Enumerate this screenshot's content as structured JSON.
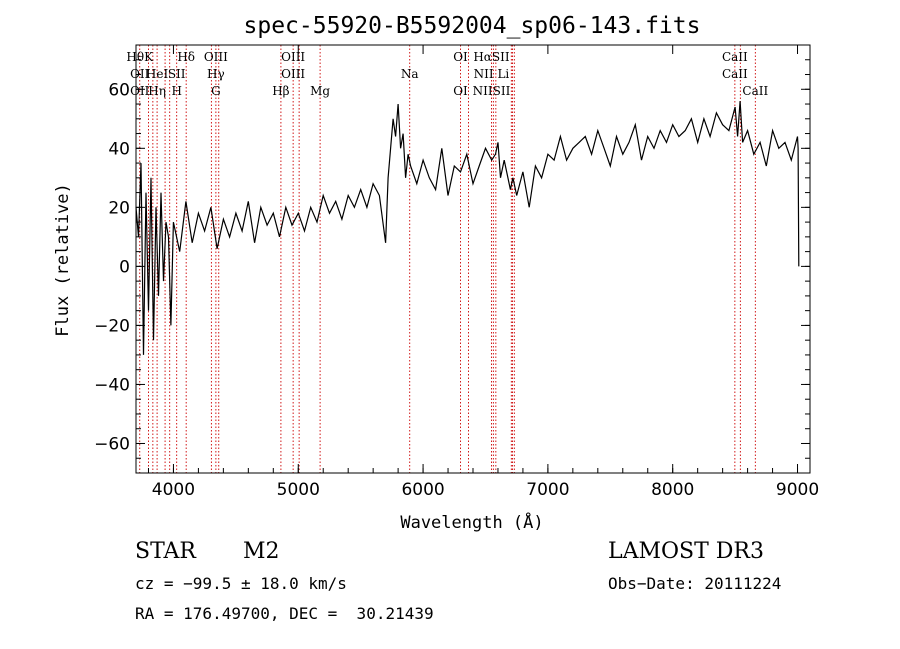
{
  "chart_data": {
    "type": "line",
    "title": "spec-55920-B5592004_sp06-143.fits",
    "xlabel": "Wavelength (Å)",
    "ylabel": "Flux (relative)",
    "xlim": [
      3700,
      9100
    ],
    "ylim": [
      -70,
      75
    ],
    "xticks": [
      {
        "value": 4000,
        "label": "4000"
      },
      {
        "value": 5000,
        "label": "5000"
      },
      {
        "value": 6000,
        "label": "6000"
      },
      {
        "value": 7000,
        "label": "7000"
      },
      {
        "value": 8000,
        "label": "8000"
      },
      {
        "value": 9000,
        "label": "9000"
      }
    ],
    "yticks": [
      {
        "value": 60,
        "label": "60"
      },
      {
        "value": 40,
        "label": "40"
      },
      {
        "value": 20,
        "label": "20"
      },
      {
        "value": 0,
        "label": "0"
      },
      {
        "value": -20,
        "label": "−20"
      },
      {
        "value": -40,
        "label": "−40"
      },
      {
        "value": -60,
        "label": "−60"
      }
    ],
    "series": [
      {
        "name": "flux",
        "x": [
          3700,
          3720,
          3740,
          3760,
          3780,
          3800,
          3820,
          3840,
          3860,
          3880,
          3900,
          3920,
          3940,
          3960,
          3980,
          4000,
          4050,
          4100,
          4150,
          4200,
          4250,
          4300,
          4350,
          4400,
          4450,
          4500,
          4550,
          4600,
          4650,
          4700,
          4750,
          4800,
          4850,
          4900,
          4950,
          5000,
          5050,
          5100,
          5150,
          5200,
          5250,
          5300,
          5350,
          5400,
          5450,
          5500,
          5550,
          5600,
          5650,
          5700,
          5720,
          5740,
          5760,
          5780,
          5800,
          5820,
          5840,
          5860,
          5880,
          5900,
          5950,
          6000,
          6050,
          6100,
          6150,
          6200,
          6250,
          6300,
          6350,
          6400,
          6450,
          6500,
          6550,
          6580,
          6600,
          6620,
          6650,
          6700,
          6720,
          6750,
          6800,
          6850,
          6900,
          6950,
          7000,
          7050,
          7100,
          7150,
          7200,
          7250,
          7300,
          7350,
          7400,
          7450,
          7500,
          7550,
          7600,
          7650,
          7700,
          7750,
          7800,
          7850,
          7900,
          7950,
          8000,
          8050,
          8100,
          8150,
          8200,
          8250,
          8300,
          8350,
          8400,
          8450,
          8500,
          8520,
          8540,
          8560,
          8600,
          8650,
          8700,
          8750,
          8800,
          8850,
          8900,
          8950,
          9000,
          9005,
          9010
        ],
        "values": [
          20,
          10,
          35,
          -30,
          25,
          -15,
          30,
          -25,
          20,
          -10,
          25,
          -5,
          15,
          10,
          -20,
          15,
          5,
          22,
          8,
          18,
          12,
          20,
          6,
          16,
          10,
          18,
          12,
          22,
          8,
          20,
          14,
          18,
          10,
          20,
          14,
          18,
          12,
          20,
          15,
          24,
          18,
          22,
          16,
          24,
          20,
          26,
          20,
          28,
          24,
          8,
          30,
          40,
          50,
          44,
          55,
          40,
          45,
          30,
          38,
          34,
          28,
          36,
          30,
          26,
          40,
          24,
          34,
          32,
          38,
          28,
          34,
          40,
          36,
          38,
          42,
          30,
          36,
          26,
          30,
          24,
          32,
          20,
          34,
          30,
          38,
          36,
          44,
          36,
          40,
          42,
          44,
          38,
          46,
          40,
          34,
          44,
          38,
          42,
          48,
          36,
          44,
          40,
          46,
          42,
          48,
          44,
          46,
          50,
          42,
          50,
          44,
          52,
          48,
          46,
          54,
          44,
          56,
          42,
          46,
          38,
          42,
          34,
          46,
          40,
          42,
          36,
          44,
          40,
          0
        ]
      }
    ],
    "reference_lines": [
      {
        "x": 3730,
        "labels": [
          "HθK",
          "OII",
          "OII"
        ],
        "label_pos": "top"
      },
      {
        "x": 3800,
        "labels": [
          "",
          "",
          ""
        ],
        "label_pos": "top"
      },
      {
        "x": 3835,
        "labels": [],
        "label_pos": "top"
      },
      {
        "x": 3869,
        "labels": [
          "",
          "HeI",
          "Hη"
        ],
        "label_pos": "top"
      },
      {
        "x": 3933,
        "labels": [],
        "label_pos": "top"
      },
      {
        "x": 3970,
        "labels": [],
        "label_pos": "top"
      },
      {
        "x": 4026,
        "labels": [
          "",
          "SII",
          "H"
        ],
        "label_pos": "top"
      },
      {
        "x": 4102,
        "labels": [
          "Hδ"
        ],
        "label_pos": "top"
      },
      {
        "x": 4304,
        "labels": [],
        "label_pos": "top"
      },
      {
        "x": 4340,
        "labels": [
          "OIII",
          "Hγ",
          "G"
        ],
        "label_pos": "top"
      },
      {
        "x": 4363,
        "labels": [],
        "label_pos": "top"
      },
      {
        "x": 4861,
        "labels": [
          "",
          "",
          "Hβ"
        ],
        "label_pos": "top"
      },
      {
        "x": 4959,
        "labels": [
          "OIII",
          "OIII"
        ],
        "label_pos": "top"
      },
      {
        "x": 5007,
        "labels": [],
        "label_pos": "top"
      },
      {
        "x": 5175,
        "labels": [
          "",
          "",
          "Mg"
        ],
        "label_pos": "top"
      },
      {
        "x": 5893,
        "labels": [
          "",
          "Na"
        ],
        "label_pos": "top"
      },
      {
        "x": 6300,
        "labels": [
          "OI",
          "",
          "OI"
        ],
        "label_pos": "top"
      },
      {
        "x": 6364,
        "labels": [],
        "label_pos": "top"
      },
      {
        "x": 6548,
        "labels": [
          "HαSII",
          "NII Li",
          "NIISII"
        ],
        "label_pos": "top"
      },
      {
        "x": 6563,
        "labels": [],
        "label_pos": "top"
      },
      {
        "x": 6583,
        "labels": [],
        "label_pos": "top"
      },
      {
        "x": 6707,
        "labels": [],
        "label_pos": "top"
      },
      {
        "x": 6716,
        "labels": [],
        "label_pos": "top"
      },
      {
        "x": 6731,
        "labels": [],
        "label_pos": "top"
      },
      {
        "x": 8498,
        "labels": [
          "CaII",
          "CaII"
        ],
        "label_pos": "top"
      },
      {
        "x": 8542,
        "labels": [],
        "label_pos": "top"
      },
      {
        "x": 8662,
        "labels": [
          "",
          "",
          "CaII"
        ],
        "label_pos": "top"
      }
    ]
  },
  "info": {
    "object_type": "STAR",
    "subclass": "M2",
    "survey": "LAMOST DR3",
    "cz": "cz = −99.5 ± 18.0 km/s",
    "obs_date": "Obs−Date: 20111224",
    "coords": "RA = 176.49700, DEC =  30.21439"
  },
  "colors": {
    "axis": "#000000",
    "spectrum": "#000000",
    "reference_line": "#cc0000"
  }
}
